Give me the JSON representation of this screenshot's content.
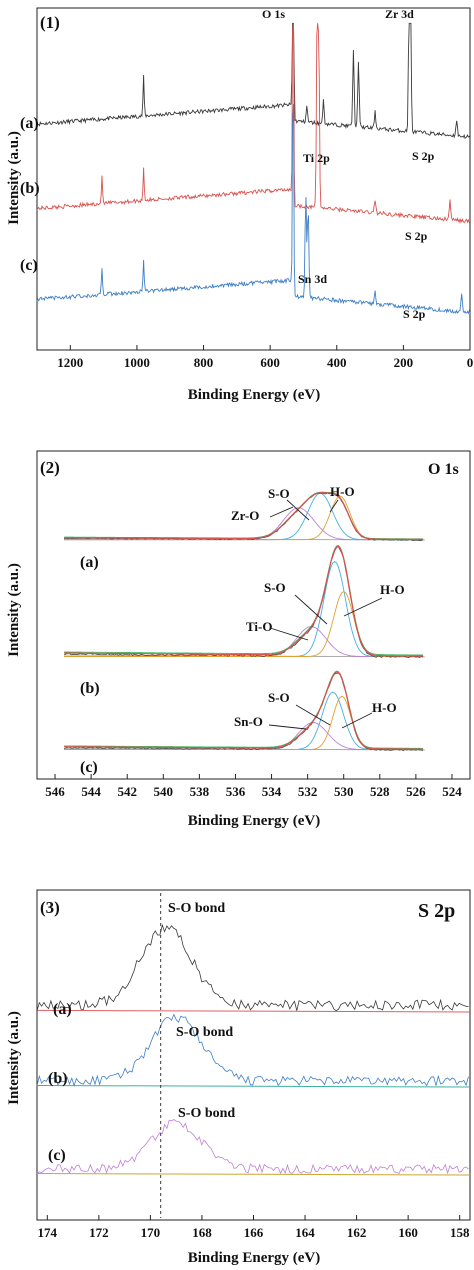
{
  "chart_data": [
    {
      "type": "line",
      "panel_label": "(1)",
      "xlabel": "Binding Energy (eV)",
      "ylabel": "Intensity (a.u.)",
      "xlim": [
        1300,
        0
      ],
      "x_ticks": [
        "1200",
        "1000",
        "800",
        "600",
        "400",
        "200",
        "0"
      ],
      "x_tick_values": [
        1200,
        1000,
        800,
        600,
        400,
        200,
        0
      ],
      "series": [
        {
          "label": "(a)",
          "color": "#3a3a3a",
          "baseline": 0.68,
          "peaks": [
            [
              980,
              0.12
            ],
            [
              531,
              0.95
            ],
            [
              490,
              0.05
            ],
            [
              440,
              0.07
            ],
            [
              350,
              0.23
            ],
            [
              335,
              0.2
            ],
            [
              182,
              0.6
            ],
            [
              179,
              0.55
            ],
            [
              285,
              0.05
            ],
            [
              40,
              0.05
            ]
          ]
        },
        {
          "label": "(b)",
          "color": "#d9534f",
          "baseline": 0.42,
          "peaks": [
            [
              1105,
              0.08
            ],
            [
              980,
              0.1
            ],
            [
              531,
              0.7
            ],
            [
              459,
              0.58
            ],
            [
              454,
              0.5
            ],
            [
              285,
              0.04
            ],
            [
              60,
              0.06
            ]
          ]
        },
        {
          "label": "(c)",
          "color": "#3f7fc7",
          "baseline": 0.14,
          "peaks": [
            [
              1105,
              0.08
            ],
            [
              980,
              0.1
            ],
            [
              531,
              0.7
            ],
            [
              493,
              0.32
            ],
            [
              486,
              0.28
            ],
            [
              285,
              0.04
            ],
            [
              25,
              0.06
            ]
          ]
        }
      ],
      "annotations": [
        "O 1s",
        "Zr 3d",
        "Ti 2p",
        "Sn 3d",
        "S 2p",
        "S 2p",
        "S 2p"
      ]
    },
    {
      "type": "line",
      "panel_label": "(2)",
      "title": "O 1s",
      "xlabel": "Binding Energy (eV)",
      "ylabel": "Intensity (a.u.)",
      "xlim": [
        547,
        523
      ],
      "x_ticks": [
        "546",
        "544",
        "542",
        "540",
        "538",
        "536",
        "534",
        "532",
        "530",
        "528",
        "526",
        "524"
      ],
      "x_tick_values": [
        546,
        544,
        542,
        540,
        538,
        536,
        534,
        532,
        530,
        528,
        526,
        524
      ],
      "series": [
        {
          "label": "(a)",
          "components": [
            {
              "name": "Zr-O",
              "center": 532.5,
              "fwhm": 2.0,
              "height": 0.55
            },
            {
              "name": "S-O",
              "center": 531.3,
              "fwhm": 1.6,
              "height": 0.8
            },
            {
              "name": "H-O",
              "center": 530.2,
              "fwhm": 1.3,
              "height": 0.75
            }
          ]
        },
        {
          "label": "(b)",
          "components": [
            {
              "name": "Ti-O",
              "center": 531.8,
              "fwhm": 1.9,
              "height": 0.3
            },
            {
              "name": "S-O",
              "center": 530.5,
              "fwhm": 1.4,
              "height": 0.95
            },
            {
              "name": "H-O",
              "center": 530.0,
              "fwhm": 1.3,
              "height": 0.65
            }
          ]
        },
        {
          "label": "(c)",
          "components": [
            {
              "name": "Sn-O",
              "center": 531.7,
              "fwhm": 1.9,
              "height": 0.33
            },
            {
              "name": "S-O",
              "center": 530.6,
              "fwhm": 1.4,
              "height": 0.7
            },
            {
              "name": "H-O",
              "center": 530.1,
              "fwhm": 1.2,
              "height": 0.65
            }
          ]
        }
      ]
    },
    {
      "type": "line",
      "panel_label": "(3)",
      "title": "S 2p",
      "xlabel": "Binding Energy (eV)",
      "ylabel": "Intensity (a.u.)",
      "xlim": [
        174.4,
        157.6
      ],
      "x_ticks": [
        "174",
        "172",
        "170",
        "168",
        "166",
        "164",
        "162",
        "160",
        "158"
      ],
      "x_tick_values": [
        174,
        172,
        170,
        168,
        166,
        164,
        162,
        160,
        158
      ],
      "reference_line_x": 169.6,
      "series": [
        {
          "label": "(a)",
          "color": "#3a3a3a",
          "baseline_color": "#e06060",
          "peak_center": 169.4,
          "peak_height": 0.95,
          "annotation": "S-O bond"
        },
        {
          "label": "(b)",
          "color": "#3f7fc7",
          "baseline_color": "#3fb0a0",
          "peak_center": 169.0,
          "peak_height": 0.85,
          "annotation": "S-O bond"
        },
        {
          "label": "(c)",
          "color": "#c080d8",
          "baseline_color": "#c8a830",
          "peak_center": 169.0,
          "peak_height": 0.65,
          "annotation": "S-O bond"
        }
      ]
    }
  ],
  "component_colors": {
    "envelope": "#d9534f",
    "fit": "#44bb66",
    "baseline": "#999999",
    "metal_o": "#c080d8",
    "s_o": "#46b0e0",
    "h_o": "#e0a030",
    "raw": "#555555"
  }
}
